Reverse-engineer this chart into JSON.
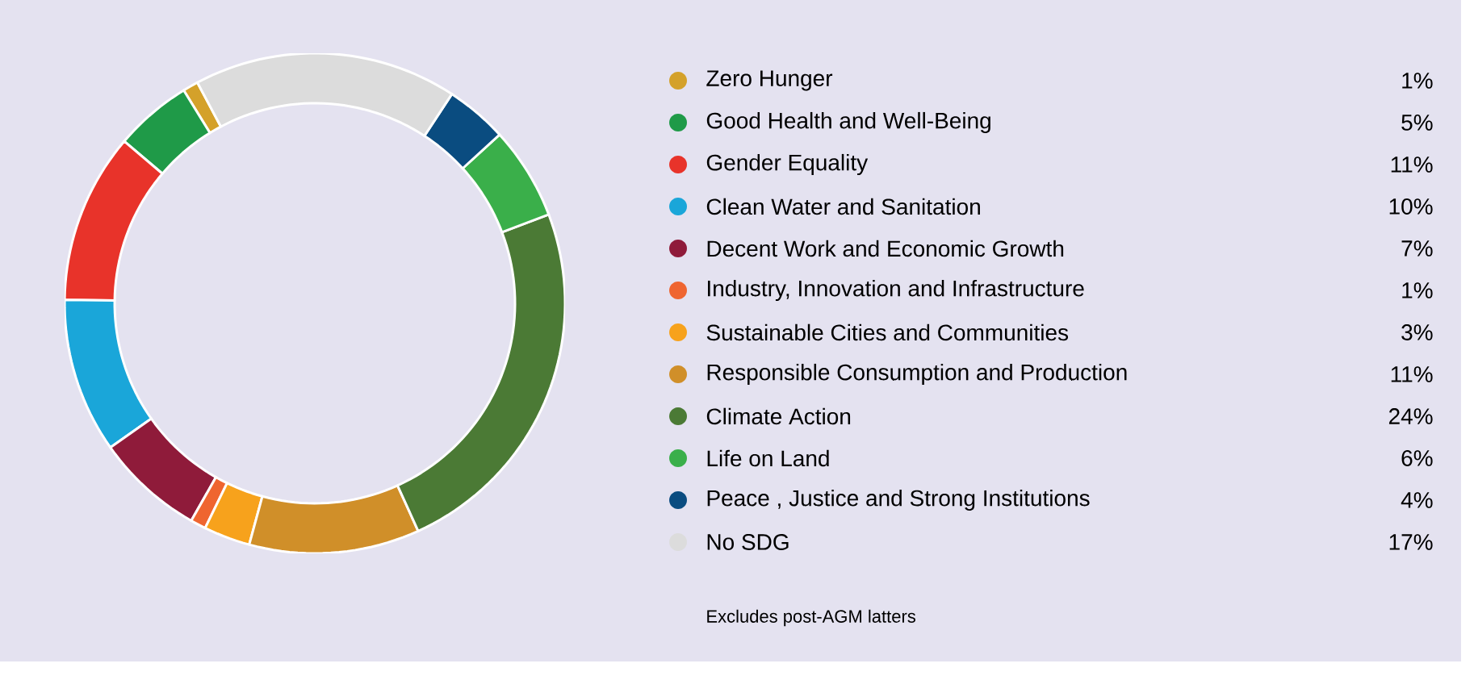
{
  "chart_data": {
    "type": "donut",
    "categories": [
      "Zero Hunger",
      "Good Health and Well-Being",
      "Gender Equality",
      "Clean Water and Sanitation",
      "Decent Work and Economic Growth",
      "Industry, Innovation and Infrastructure",
      "Sustainable Cities and Communities",
      "Responsible Consumption and Production",
      "Climate Action",
      "Life on Land",
      "Peace , Justice and Strong Institutions",
      "No SDG"
    ],
    "values": [
      1,
      5,
      11,
      10,
      7,
      1,
      3,
      11,
      24,
      6,
      4,
      17
    ],
    "value_labels": [
      "1%",
      "5%",
      "11%",
      "10%",
      "7%",
      "1%",
      "3%",
      "11%",
      "24%",
      "6%",
      "4%",
      "17%"
    ],
    "colors": [
      "#d4a12a",
      "#1f9a48",
      "#e8332a",
      "#1aa6d9",
      "#8f1b3a",
      "#ef6530",
      "#f7a21c",
      "#d08f29",
      "#4b7a35",
      "#3aaf4a",
      "#0a4c80",
      "#dcdcdc"
    ],
    "legend": "right",
    "annotations": [
      "Excludes post-AGM latters"
    ]
  }
}
